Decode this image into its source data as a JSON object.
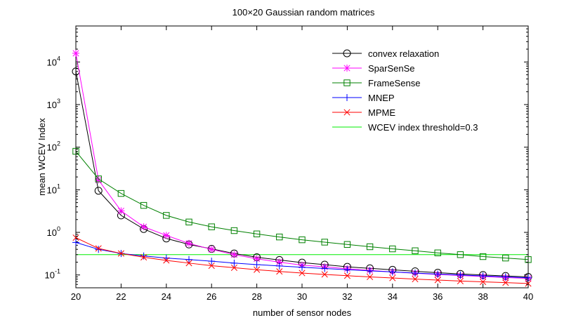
{
  "chart_data": {
    "type": "line",
    "title": "100×20 Gaussian random matrices",
    "xlabel": "number of sensor nodes",
    "ylabel": "mean WCEV Index",
    "xlim": [
      20,
      40
    ],
    "ylim": [
      0.05,
      70000
    ],
    "yscale": "log",
    "grid": false,
    "legend_position": "top-right",
    "x_ticks": [
      20,
      22,
      24,
      26,
      28,
      30,
      32,
      34,
      36,
      38,
      40
    ],
    "x_tick_labels": [
      "20",
      "22",
      "24",
      "26",
      "28",
      "30",
      "32",
      "34",
      "36",
      "38",
      "40"
    ],
    "y_ticks": [
      {
        "base": "10",
        "exp": "-1",
        "value": 0.1
      },
      {
        "base": "10",
        "exp": "0",
        "value": 1
      },
      {
        "base": "10",
        "exp": "1",
        "value": 10
      },
      {
        "base": "10",
        "exp": "2",
        "value": 100
      },
      {
        "base": "10",
        "exp": "3",
        "value": 1000
      },
      {
        "base": "10",
        "exp": "4",
        "value": 10000
      }
    ],
    "x": [
      20,
      21,
      22,
      23,
      24,
      25,
      26,
      27,
      28,
      29,
      30,
      31,
      32,
      33,
      34,
      35,
      36,
      37,
      38,
      39,
      40
    ],
    "series": [
      {
        "name": "convex relaxation",
        "color": "#000000",
        "marker": "circle",
        "values": [
          6000,
          9.5,
          2.5,
          1.2,
          0.72,
          0.52,
          0.41,
          0.32,
          0.26,
          0.225,
          0.195,
          0.175,
          0.155,
          0.143,
          0.132,
          0.122,
          0.113,
          0.106,
          0.1,
          0.095,
          0.09
        ]
      },
      {
        "name": "SparSenSe",
        "color": "#ff00ff",
        "marker": "star",
        "values": [
          16000,
          17,
          3.2,
          1.35,
          0.85,
          0.55,
          0.4,
          0.3,
          0.24,
          0.2,
          0.17,
          0.155,
          0.14,
          0.128,
          0.118,
          0.11,
          0.103,
          0.097,
          0.092,
          0.087,
          0.083
        ]
      },
      {
        "name": "FrameSense",
        "color": "#008000",
        "marker": "square",
        "values": [
          80,
          18,
          8.2,
          4.3,
          2.5,
          1.75,
          1.35,
          1.1,
          0.92,
          0.78,
          0.67,
          0.59,
          0.52,
          0.46,
          0.41,
          0.37,
          0.33,
          0.3,
          0.27,
          0.25,
          0.23
        ]
      },
      {
        "name": "MNEP",
        "color": "#0000ff",
        "marker": "plus",
        "values": [
          0.58,
          0.4,
          0.32,
          0.28,
          0.25,
          0.23,
          0.21,
          0.19,
          0.175,
          0.163,
          0.152,
          0.142,
          0.133,
          0.125,
          0.118,
          0.111,
          0.105,
          0.1,
          0.095,
          0.09,
          0.086
        ]
      },
      {
        "name": "MPME",
        "color": "#ff0000",
        "marker": "x",
        "values": [
          0.75,
          0.42,
          0.32,
          0.26,
          0.22,
          0.19,
          0.165,
          0.148,
          0.133,
          0.121,
          0.111,
          0.103,
          0.096,
          0.09,
          0.085,
          0.08,
          0.076,
          0.072,
          0.069,
          0.066,
          0.063
        ]
      },
      {
        "name": "WCEV index threshold=0.3",
        "color": "#00ee00",
        "marker": "none",
        "values": [
          0.3,
          0.3,
          0.3,
          0.3,
          0.3,
          0.3,
          0.3,
          0.3,
          0.3,
          0.3,
          0.3,
          0.3,
          0.3,
          0.3,
          0.3,
          0.3,
          0.3,
          0.3,
          0.3,
          0.3,
          0.3
        ]
      }
    ]
  }
}
